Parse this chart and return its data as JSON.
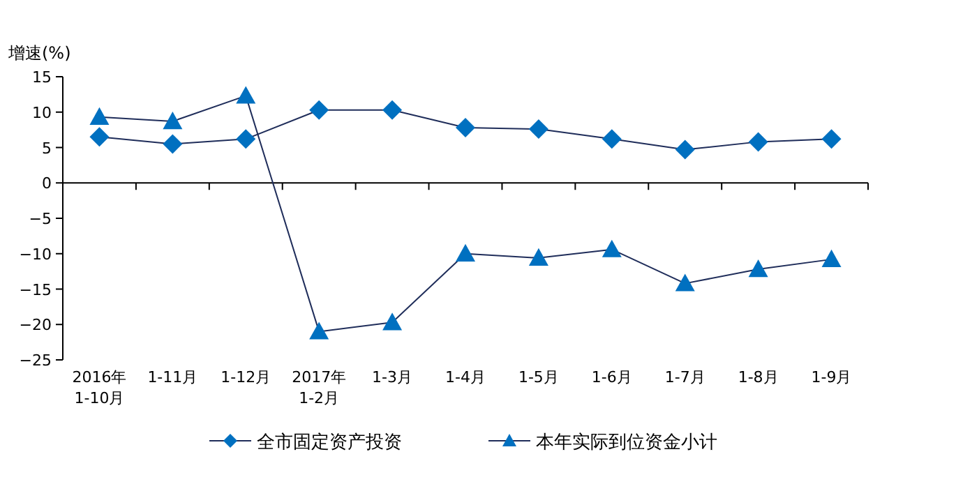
{
  "chart_data": {
    "type": "line",
    "ylabel": "增速(%)",
    "categories": [
      "2016年\n1-10月",
      "1-11月",
      "1-12月",
      "2017年\n1-2月",
      "1-3月",
      "1-4月",
      "1-5月",
      "1-6月",
      "1-7月",
      "1-8月",
      "1-9月"
    ],
    "series": [
      {
        "name": "全市固定资产投资",
        "color": "#0070c0",
        "marker": "diamond",
        "values": [
          6.5,
          5.5,
          6.2,
          10.3,
          10.3,
          7.8,
          7.6,
          6.2,
          4.7,
          5.8,
          6.2
        ]
      },
      {
        "name": "本年实际到位资金小计",
        "color": "#0070c0",
        "marker": "triangle",
        "values": [
          9.3,
          8.7,
          12.3,
          -21,
          -19.7,
          -10,
          -10.6,
          -9.4,
          -14.2,
          -12.2,
          -10.8
        ]
      }
    ],
    "ylim": [
      -25,
      15
    ],
    "yticks": [
      -25,
      -20,
      -15,
      -10,
      -5,
      0,
      5,
      10,
      15
    ],
    "legend": "bottom"
  }
}
